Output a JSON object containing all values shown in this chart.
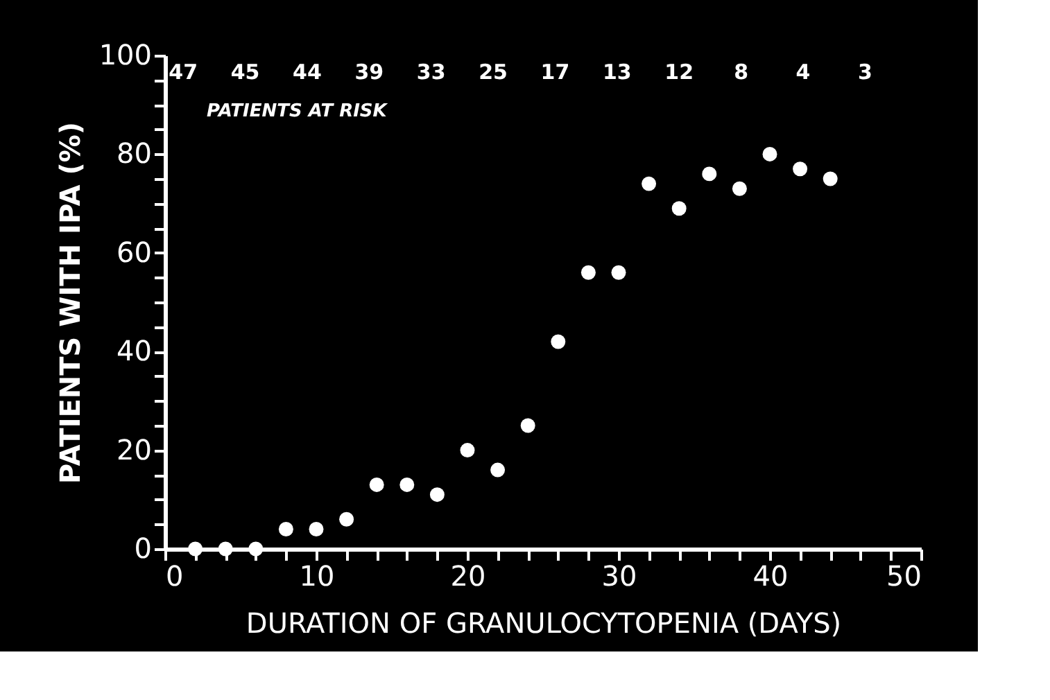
{
  "chart_data": {
    "type": "scatter",
    "xlabel": "DURATION OF GRANULOCYTOPENIA (DAYS)",
    "ylabel": "PATIENTS WITH IPA (%)",
    "x": [
      2,
      4,
      6,
      8,
      10,
      12,
      14,
      16,
      18,
      20,
      22,
      24,
      26,
      28,
      30,
      32,
      34,
      36,
      38,
      40,
      42,
      44
    ],
    "series": [
      {
        "color": "#ffffff",
        "values": [
          0,
          0,
          0,
          4,
          4,
          6,
          13,
          13,
          11,
          20,
          16,
          25,
          42,
          56,
          56,
          74,
          69,
          76,
          73,
          80,
          77,
          75
        ]
      }
    ],
    "marker": "circle",
    "xlim": [
      0,
      50
    ],
    "xticks": [
      0,
      {
        "value": 2,
        "label": null
      },
      {
        "value": 4,
        "label": null
      },
      {
        "value": 6,
        "label": null
      },
      {
        "value": 8,
        "label": null
      },
      10,
      {
        "value": 12,
        "label": null
      },
      {
        "value": 14,
        "label": null
      },
      {
        "value": 16,
        "label": null
      },
      {
        "value": 18,
        "label": null
      },
      20,
      {
        "value": 22,
        "label": null
      },
      {
        "value": 24,
        "label": null
      },
      {
        "value": 26,
        "label": null
      },
      {
        "value": 28,
        "label": null
      },
      30,
      {
        "value": 32,
        "label": null
      },
      {
        "value": 34,
        "label": null
      },
      {
        "value": 36,
        "label": null
      },
      {
        "value": 38,
        "label": null
      },
      40,
      {
        "value": 42,
        "label": null
      },
      {
        "value": 44,
        "label": null
      },
      {
        "value": 46,
        "label": null
      },
      {
        "value": 48,
        "label": null
      },
      50
    ],
    "ylim": [
      0,
      100
    ],
    "yticks": [
      0,
      {
        "value": 5,
        "label": null
      },
      {
        "value": 10,
        "label": null
      },
      {
        "value": 15,
        "label": null
      },
      20,
      {
        "value": 25,
        "label": null
      },
      {
        "value": 30,
        "label": null
      },
      {
        "value": 35,
        "label": null
      },
      40,
      {
        "value": 45,
        "label": null
      },
      {
        "value": 50,
        "label": null
      },
      {
        "value": 55,
        "label": null
      },
      60,
      {
        "value": 65,
        "label": null
      },
      {
        "value": 70,
        "label": null
      },
      {
        "value": 75,
        "label": null
      },
      80,
      {
        "value": 85,
        "label": null
      },
      {
        "value": 90,
        "label": null
      },
      {
        "value": 95,
        "label": null
      },
      100
    ],
    "grid": false,
    "annotations": [
      "47",
      "45",
      "44",
      "39",
      "33",
      "25",
      "17",
      "13",
      "12",
      "8",
      "4",
      "3",
      "PATIENTS AT RISK"
    ]
  }
}
